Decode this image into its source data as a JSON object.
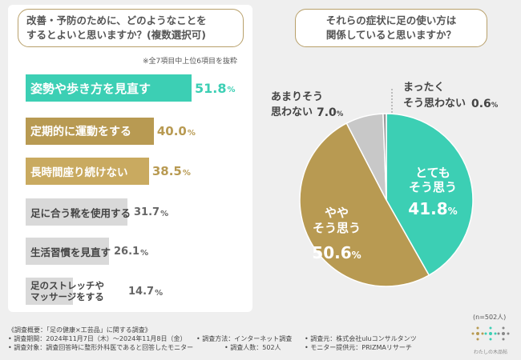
{
  "left_question": [
    "改善・予防のために、どのようなことを",
    "するとよいと思いますか？(複数選択可)"
  ],
  "left_note": "※全7項目中上位6項目を抜粋",
  "right_question": [
    "それらの症状に足の使い方は",
    "関係していると思いますか？"
  ],
  "sample_size": "(n=502人)",
  "footer": {
    "line1": "《調査概要：「足の健康×工芸品」に関する調査》",
    "period": "• 調査期間：2024年11月7日（木）〜2024年11月8日（金）",
    "method": "• 調査方法：インターネット調査",
    "source": "• 調査元：株式会社uluコンサルタンツ",
    "target": "• 調査対象：調査回答時に整形外科医であると回答したモニター",
    "count": "• 調査人数：502人",
    "provider": "• モニター提供元：PRIZMAリサーチ"
  },
  "logo_text": "わたしの木品帖",
  "colors": {
    "teal": "#3ccfb4",
    "gold": "#b89a52",
    "gray": "#d9d9d9",
    "lightgray": "#c8c8c8"
  },
  "chart_data": [
    {
      "type": "bar",
      "orientation": "horizontal",
      "title": "改善・予防のために、どのようなことをするとよいと思いますか？(複数選択可)",
      "unit": "%",
      "categories": [
        "姿勢や歩き方を見直す",
        "定期的に運動をする",
        "長時間座り続けない",
        "足に合う靴を使用する",
        "生活習慣を見直す",
        "足のストレッチやマッサージをする"
      ],
      "label_lines": [
        [
          "姿勢や歩き方を見直す"
        ],
        [
          "定期的に運動をする"
        ],
        [
          "長時間座り続けない"
        ],
        [
          "足に合う靴を使用する"
        ],
        [
          "生活習慣を見直す"
        ],
        [
          "足のストレッチや",
          "マッサージをする"
        ]
      ],
      "values": [
        51.8,
        40.0,
        38.5,
        31.7,
        26.1,
        14.7
      ],
      "value_labels": [
        "51.8",
        "40.0",
        "38.5",
        "31.7",
        "26.1",
        "14.7"
      ],
      "value_colors": [
        "#3ccfb4",
        "#b89a52",
        "#b89a52",
        "#666666",
        "#666666",
        "#666666"
      ],
      "bar_colors": [
        "#3ccfb4",
        "#b89a52",
        "#c9aa60",
        "#d9d9d9",
        "#d9d9d9",
        "#d9d9d9"
      ],
      "label_colors": [
        "#ffffff",
        "#ffffff",
        "#ffffff",
        "#444444",
        "#444444",
        "#444444"
      ]
    },
    {
      "type": "pie",
      "title": "それらの症状に足の使い方は関係していると思いますか？",
      "unit": "%",
      "categories": [
        "とてもそう思う",
        "ややそう思う",
        "あまりそう思わない",
        "まったくそう思わない"
      ],
      "label_lines": [
        [
          "とても",
          "そう思う"
        ],
        [
          "やや",
          "そう思う"
        ],
        [
          "あまりそう",
          "思わない"
        ],
        [
          "まったく",
          "そう思わない"
        ]
      ],
      "values": [
        41.8,
        50.6,
        7.0,
        0.6
      ],
      "value_labels": [
        "41.8",
        "50.6",
        "7.0",
        "0.6"
      ],
      "colors": [
        "#3ccfb4",
        "#b89a52",
        "#c8c8c8",
        "#9a9a9a"
      ]
    }
  ]
}
